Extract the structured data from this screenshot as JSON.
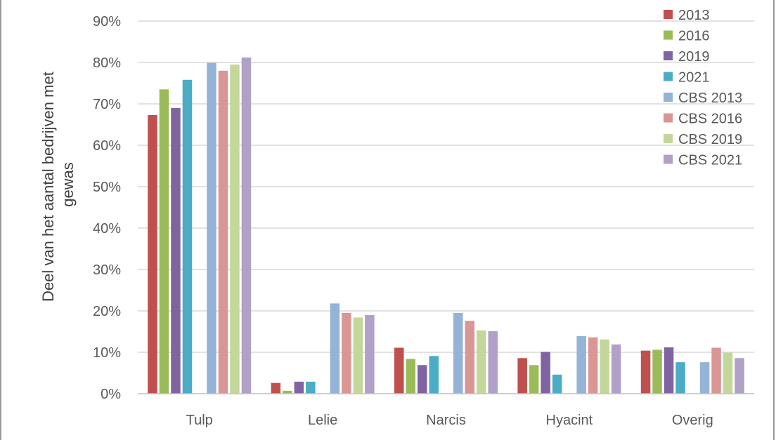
{
  "chart_data": {
    "type": "bar",
    "title": "",
    "xlabel": "",
    "ylabel": "Deel van het aantal bedrijven met gewas",
    "ylabel_lines": [
      "Deel van het aantal bedrijven met",
      "gewas"
    ],
    "ylim": [
      0,
      90
    ],
    "yticks": [
      0,
      10,
      20,
      30,
      40,
      50,
      60,
      70,
      80,
      90
    ],
    "ytick_labels": [
      "0%",
      "10%",
      "20%",
      "30%",
      "40%",
      "50%",
      "60%",
      "70%",
      "80%",
      "90%"
    ],
    "grid": true,
    "legend": "top-right",
    "categories": [
      "Tulp",
      "Lelie",
      "Narcis",
      "Hyacint",
      "Overig"
    ],
    "series": [
      {
        "name": "2013",
        "color": "#c0504d",
        "values": [
          67.3,
          2.6,
          11.1,
          8.6,
          10.4
        ]
      },
      {
        "name": "2016",
        "color": "#9bbb59",
        "values": [
          73.5,
          0.7,
          8.4,
          6.9,
          10.6
        ]
      },
      {
        "name": "2019",
        "color": "#8064a2",
        "values": [
          69.0,
          2.9,
          6.9,
          10.1,
          11.2
        ]
      },
      {
        "name": "2021",
        "color": "#4bacc6",
        "values": [
          75.8,
          2.9,
          9.1,
          4.6,
          7.6
        ]
      },
      {
        "name": "CBS 2013",
        "color": "#95b3d7",
        "values": [
          79.9,
          21.8,
          19.5,
          13.9,
          7.6
        ]
      },
      {
        "name": "CBS 2016",
        "color": "#da9694",
        "values": [
          78.0,
          19.5,
          17.6,
          13.6,
          11.1
        ]
      },
      {
        "name": "CBS 2019",
        "color": "#c4d79b",
        "values": [
          79.5,
          18.4,
          15.3,
          13.1,
          9.9
        ]
      },
      {
        "name": "CBS 2021",
        "color": "#b1a0c7",
        "values": [
          81.2,
          19.0,
          15.1,
          11.9,
          8.6
        ]
      }
    ]
  }
}
